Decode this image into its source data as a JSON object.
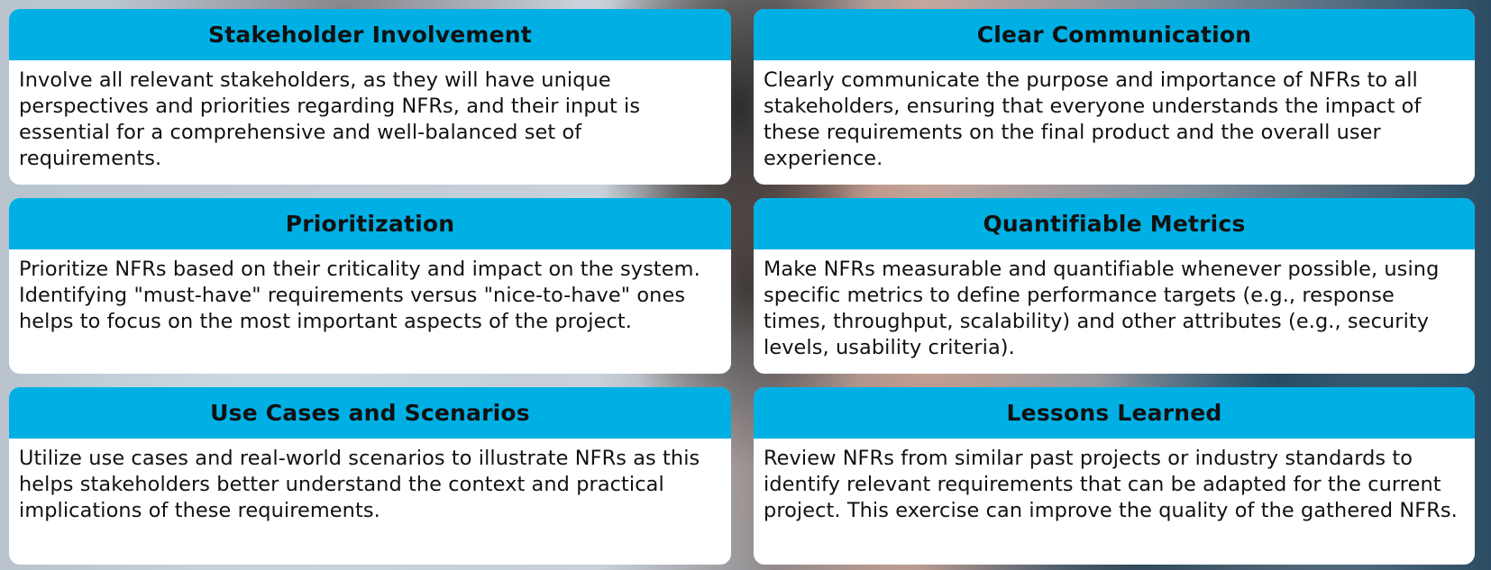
{
  "cards": [
    {
      "title": "Stakeholder Involvement",
      "text": "Involve all relevant stakeholders, as they will have unique perspectives and priorities regarding NFRs, and their input is essential for a comprehensive and well-balanced set of requirements."
    },
    {
      "title": "Clear Communication",
      "text": "Clearly communicate the purpose and importance of NFRs to all stakeholders, ensuring that everyone understands the impact of these requirements on the final product and the overall user experience."
    },
    {
      "title": "Prioritization",
      "text": "Prioritize NFRs based on their criticality and impact on the system. Identifying \"must-have\" requirements versus \"nice-to-have\" ones helps to focus on the most important aspects of the project."
    },
    {
      "title": "Quantifiable Metrics",
      "text": "Make NFRs measurable and quantifiable whenever possible, using specific metrics to define performance targets (e.g., response times, throughput, scalability) and other attributes (e.g., security levels, usability criteria)."
    },
    {
      "title": "Use Cases and Scenarios",
      "text": "Utilize use cases and real-world scenarios to illustrate NFRs as this helps stakeholders better understand the context and practical implications of these requirements."
    },
    {
      "title": "Lessons Learned",
      "text": "Review NFRs from similar past projects or industry standards to identify relevant requirements that can be adapted for the current project. This exercise can improve the quality of the gathered NFRs."
    }
  ],
  "colors": {
    "header": "#00b0e4",
    "card": "#ffffff",
    "text": "#111111"
  }
}
